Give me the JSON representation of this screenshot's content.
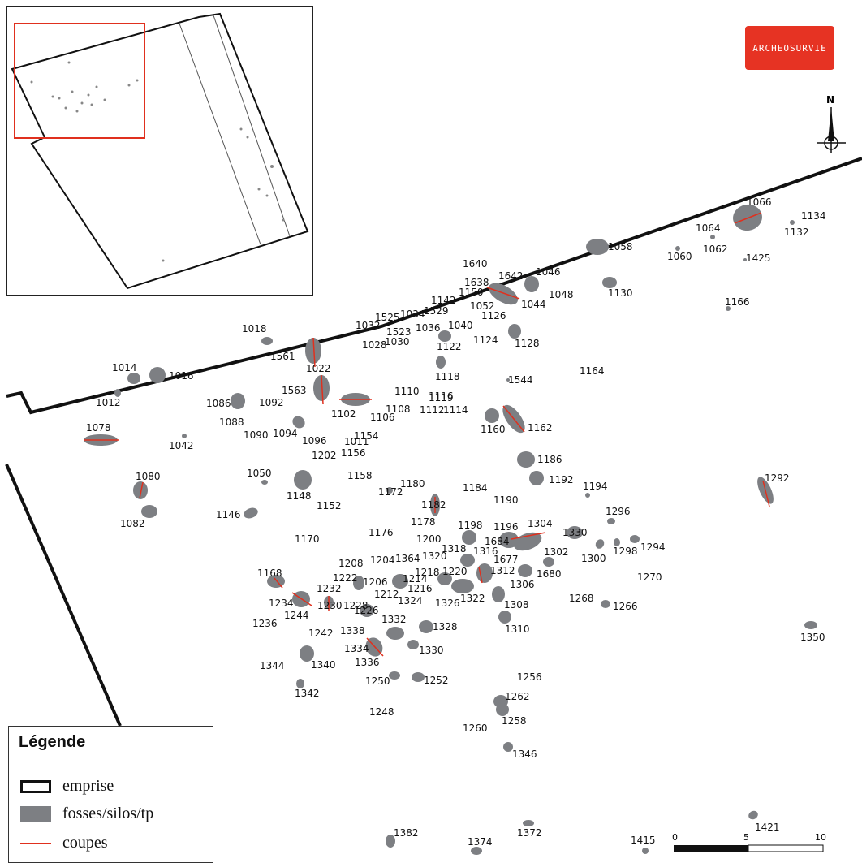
{
  "logo": {
    "text": "ARCHEOSURVIE"
  },
  "north_label": "N",
  "legend": {
    "title": "Légende",
    "items": [
      {
        "label": "emprise",
        "symbol": "black-outline"
      },
      {
        "label": "fosses/silos/tp",
        "symbol": "grey-fill"
      },
      {
        "label": "coupes",
        "symbol": "red-line"
      }
    ]
  },
  "scale": {
    "labels": [
      "0",
      "5",
      "10 m"
    ]
  },
  "colors": {
    "features": "#7d7f83",
    "sections": "#e0301e",
    "boundary": "#111111",
    "inset_frame": "#e0301e",
    "logo": "#e63323"
  },
  "feature_labels": [
    "1066",
    "1134",
    "1132",
    "1064",
    "1062",
    "1060",
    "1058",
    "1425",
    "1640",
    "1642",
    "1046",
    "1638",
    "1150",
    "1052",
    "1044",
    "1048",
    "1130",
    "1166",
    "1018",
    "1142",
    "1529",
    "1525",
    "1034",
    "1126",
    "1032",
    "1523",
    "1036",
    "1040",
    "1028",
    "1030",
    "1124",
    "1122",
    "1128",
    "1561",
    "1022",
    "1014",
    "1016",
    "1012",
    "1118",
    "1544",
    "1164",
    "1563",
    "1110",
    "1116",
    "1092",
    "1086",
    "1102",
    "1108",
    "1119",
    "1112",
    "1114",
    "1088",
    "1106",
    "1160",
    "1162",
    "1090",
    "1094",
    "1096",
    "1078",
    "1011",
    "1154",
    "1042",
    "1202",
    "1156",
    "1186",
    "1050",
    "1158",
    "1180",
    "1184",
    "1192",
    "1194",
    "1292",
    "1080",
    "1148",
    "1172",
    "1152",
    "1190",
    "1182",
    "1296",
    "1146",
    "1082",
    "1178",
    "1198",
    "1196",
    "1304",
    "1330",
    "1176",
    "1170",
    "1200",
    "1684",
    "1318",
    "1316",
    "1302",
    "1300",
    "1298",
    "1294",
    "1208",
    "1204",
    "1364",
    "1320",
    "1677",
    "1168",
    "1222",
    "1206",
    "1218",
    "1312",
    "1220",
    "1680",
    "1270",
    "1232",
    "1214",
    "1306",
    "1212",
    "1216",
    "1322",
    "1234",
    "1324",
    "1326",
    "1268",
    "1266",
    "1230",
    "1228",
    "1226",
    "1308",
    "1244",
    "1332",
    "1328",
    "1236",
    "1338",
    "1310",
    "1242",
    "1334",
    "1330",
    "1350",
    "1336",
    "1340",
    "1344",
    "1250",
    "1252",
    "1256",
    "1342",
    "1262",
    "1248",
    "1258",
    "1260",
    "1346",
    "1421",
    "1382",
    "1372",
    "1374",
    "1415"
  ]
}
